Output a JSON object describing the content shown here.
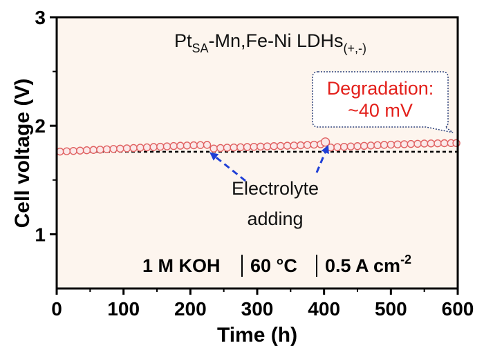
{
  "chart_data": {
    "type": "scatter",
    "xlabel": "Time (h)",
    "ylabel": "Cell voltage (V)",
    "xlim": [
      0,
      600
    ],
    "ylim": [
      0.5,
      3
    ],
    "xticks": [
      "0",
      "100",
      "200",
      "300",
      "400",
      "500",
      "600"
    ],
    "yticks": [
      "1",
      "2",
      "3"
    ],
    "series": [
      {
        "x": [
          5,
          15,
          25,
          35,
          45,
          55,
          65,
          75,
          85,
          95,
          105,
          115,
          125,
          135,
          145,
          155,
          165,
          175,
          185,
          195,
          205,
          215,
          225,
          235,
          245,
          255,
          265,
          275,
          285,
          295,
          305,
          315,
          325,
          335,
          345,
          355,
          365,
          375,
          385,
          395,
          402,
          410,
          420,
          430,
          440,
          450,
          460,
          470,
          480,
          490,
          500,
          510,
          520,
          530,
          540,
          550,
          560,
          570,
          580,
          590,
          598
        ],
        "values": [
          1.762,
          1.765,
          1.768,
          1.771,
          1.774,
          1.777,
          1.78,
          1.783,
          1.786,
          1.789,
          1.792,
          1.795,
          1.798,
          1.801,
          1.804,
          1.807,
          1.81,
          1.813,
          1.816,
          1.818,
          1.82,
          1.822,
          1.824,
          1.79,
          1.795,
          1.798,
          1.8,
          1.802,
          1.804,
          1.806,
          1.808,
          1.81,
          1.812,
          1.814,
          1.816,
          1.818,
          1.82,
          1.823,
          1.826,
          1.829,
          1.85,
          1.8,
          1.803,
          1.806,
          1.809,
          1.812,
          1.815,
          1.818,
          1.821,
          1.824,
          1.826,
          1.828,
          1.83,
          1.832,
          1.834,
          1.836,
          1.837,
          1.838,
          1.839,
          1.84,
          1.84
        ]
      }
    ],
    "baseline": 1.76,
    "annotations": {
      "label_main": "Pt",
      "label_sub1": "SA",
      "label_mid": "-Mn,Fe-Ni LDHs",
      "label_sub2": "(+,-)",
      "degradation_line1": "Degradation:",
      "degradation_line2": "~40 mV",
      "electrolyte_line1": "Electrolyte",
      "electrolyte_line2": "adding",
      "conditions": [
        "1 M KOH",
        "60 °C",
        "0.5 A cm",
        "-2"
      ]
    },
    "colors": {
      "marker": "#e06060",
      "background": "#fdf5ee",
      "degradation_text": "#e3201b",
      "arrow": "#1f3fd6"
    }
  }
}
